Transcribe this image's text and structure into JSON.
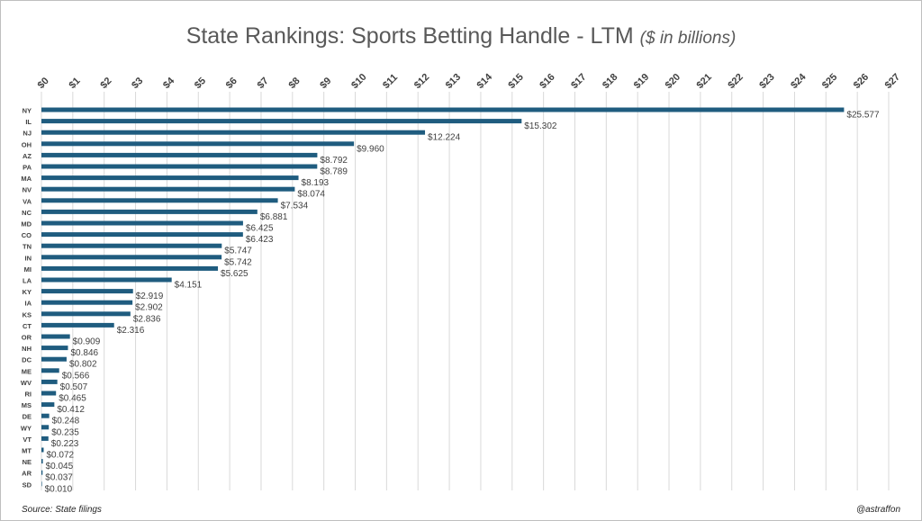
{
  "title": "State Rankings: Sports Betting Handle - LTM",
  "subtitle": "($ in billions)",
  "footer": {
    "source": "Source: State filings",
    "handle": "@astraffon"
  },
  "colors": {
    "bar": "#1f5c7f",
    "grid": "#d9d9d9",
    "text": "#404040"
  },
  "chart_data": {
    "type": "bar",
    "orientation": "horizontal",
    "title": "State Rankings: Sports Betting Handle - LTM",
    "subtitle": "($ in billions)",
    "xlim": [
      0,
      27
    ],
    "x_axis_position": "top",
    "grid": true,
    "x_tick_labels": [
      "$0",
      "$1",
      "$2",
      "$3",
      "$4",
      "$5",
      "$6",
      "$7",
      "$8",
      "$9",
      "$10",
      "$11",
      "$12",
      "$13",
      "$14",
      "$15",
      "$16",
      "$17",
      "$18",
      "$19",
      "$20",
      "$21",
      "$22",
      "$23",
      "$24",
      "$25",
      "$26",
      "$27"
    ],
    "categories": [
      "NY",
      "IL",
      "NJ",
      "OH",
      "AZ",
      "PA",
      "MA",
      "NV",
      "VA",
      "NC",
      "MD",
      "CO",
      "TN",
      "IN",
      "MI",
      "LA",
      "KY",
      "IA",
      "KS",
      "CT",
      "OR",
      "NH",
      "DC",
      "ME",
      "WV",
      "RI",
      "MS",
      "DE",
      "WY",
      "VT",
      "MT",
      "NE",
      "AR",
      "SD"
    ],
    "values": [
      25.577,
      15.302,
      12.224,
      9.96,
      8.792,
      8.789,
      8.193,
      8.074,
      7.534,
      6.881,
      6.425,
      6.423,
      5.747,
      5.742,
      5.625,
      4.151,
      2.919,
      2.902,
      2.836,
      2.316,
      0.909,
      0.846,
      0.802,
      0.566,
      0.507,
      0.465,
      0.412,
      0.248,
      0.235,
      0.223,
      0.072,
      0.045,
      0.037,
      0.01
    ],
    "data_labels": [
      "$25.577",
      "$15.302",
      "$12.224",
      "$9.960",
      "$8.792",
      "$8.789",
      "$8.193",
      "$8.074",
      "$7.534",
      "$6.881",
      "$6.425",
      "$6.423",
      "$5.747",
      "$5.742",
      "$5.625",
      "$4.151",
      "$2.919",
      "$2.902",
      "$2.836",
      "$2.316",
      "$0.909",
      "$0.846",
      "$0.802",
      "$0.566",
      "$0.507",
      "$0.465",
      "$0.412",
      "$0.248",
      "$0.235",
      "$0.223",
      "$0.072",
      "$0.045",
      "$0.037",
      "$0.010"
    ]
  }
}
